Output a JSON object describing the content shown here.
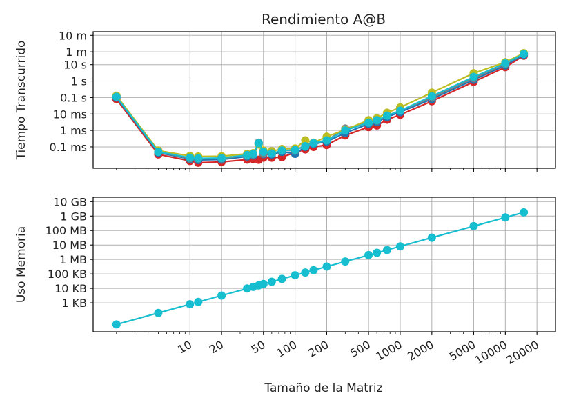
{
  "figure": {
    "title": "Rendimiento A@B",
    "xlabel": "Tamaño de la Matriz"
  },
  "chart_data": [
    {
      "type": "line",
      "title": "Rendimiento A@B",
      "xlabel": "",
      "ylabel": "Tiempo Transcurrido",
      "xscale": "log",
      "yscale": "log",
      "grid": true,
      "xlim": [
        1.2,
        30000
      ],
      "ylim": [
        5e-06,
        1000
      ],
      "x_ticks": [
        {
          "value": 10,
          "label": "10"
        },
        {
          "value": 20,
          "label": "20"
        },
        {
          "value": 50,
          "label": "50"
        },
        {
          "value": 100,
          "label": "100"
        },
        {
          "value": 200,
          "label": "200"
        },
        {
          "value": 500,
          "label": "500"
        },
        {
          "value": 1000,
          "label": "1000"
        },
        {
          "value": 2000,
          "label": "2000"
        },
        {
          "value": 5000,
          "label": "5000"
        },
        {
          "value": 10000,
          "label": "10000"
        },
        {
          "value": 20000,
          "label": "20000"
        }
      ],
      "x_tick_labels_visible": false,
      "y_ticks": [
        {
          "value": 0.0001,
          "label": "0.1 ms"
        },
        {
          "value": 0.001,
          "label": "1 ms"
        },
        {
          "value": 0.01,
          "label": "10 ms"
        },
        {
          "value": 0.1,
          "label": "0.1 s"
        },
        {
          "value": 1,
          "label": "1 s"
        },
        {
          "value": 10,
          "label": "10 s"
        },
        {
          "value": 60,
          "label": "1 m"
        },
        {
          "value": 600,
          "label": "10 m"
        }
      ],
      "series": [
        {
          "color": "#d62728",
          "x": [
            2,
            5,
            10,
            12,
            20,
            35,
            40,
            45,
            50,
            60,
            75,
            100,
            125,
            150,
            200,
            300,
            500,
            600,
            750,
            1000,
            2000,
            5000,
            10000,
            15000
          ],
          "y": [
            0.08,
            3.5e-05,
            1.4e-05,
            1.1e-05,
            1.2e-05,
            1.7e-05,
            1.8e-05,
            1.65e-05,
            2.2e-05,
            2.2e-05,
            2.4e-05,
            4.5e-05,
            7e-05,
            0.0001,
            0.00013,
            0.0005,
            0.0016,
            0.002,
            0.0045,
            0.009,
            0.06,
            0.9,
            7,
            35
          ]
        },
        {
          "color": "#1f77b4",
          "x": [
            2,
            5,
            10,
            12,
            20,
            35,
            40,
            45,
            50,
            60,
            75,
            100,
            125,
            150,
            200,
            300,
            500,
            600,
            750,
            1000,
            2000,
            5000,
            10000,
            15000
          ],
          "y": [
            0.1,
            4.5e-05,
            1.8e-05,
            1.6e-05,
            1.7e-05,
            2.6e-05,
            3e-05,
            0.00016,
            3.6e-05,
            3.5e-05,
            5e-05,
            3.8e-05,
            0.0001,
            0.00015,
            0.00021,
            0.0007,
            0.0025,
            0.0032,
            0.0065,
            0.013,
            0.08,
            1.2,
            9,
            40
          ]
        },
        {
          "color": "#7f7f7f",
          "x": [
            2,
            5,
            10,
            12,
            20,
            35,
            40,
            45,
            50,
            60,
            75,
            100,
            125,
            150,
            200,
            300,
            500,
            600,
            750,
            1000,
            2000,
            5000,
            10000,
            15000
          ],
          "y": [
            0.12,
            5e-05,
            2e-05,
            1.9e-05,
            2e-05,
            3e-05,
            3.5e-05,
            0.00018,
            4e-05,
            4e-05,
            6e-05,
            6e-05,
            0.00012,
            0.00018,
            0.00025,
            0.0013,
            0.003,
            0.004,
            0.008,
            0.016,
            0.1,
            1.5,
            11,
            45
          ]
        },
        {
          "color": "#bcbd22",
          "x": [
            2,
            5,
            10,
            12,
            20,
            35,
            40,
            45,
            50,
            60,
            75,
            100,
            125,
            150,
            200,
            300,
            500,
            600,
            750,
            1000,
            2000,
            5000,
            10000,
            15000
          ],
          "y": [
            0.13,
            6e-05,
            2.8e-05,
            2.6e-05,
            2.7e-05,
            3.8e-05,
            4.2e-05,
            0.00014,
            6e-05,
            5.5e-05,
            7.5e-05,
            8e-05,
            0.00025,
            0.00018,
            0.00042,
            0.0011,
            0.0042,
            0.0055,
            0.012,
            0.025,
            0.2,
            3,
            14,
            50
          ]
        },
        {
          "color": "#17becf",
          "x": [
            2,
            5,
            10,
            12,
            20,
            35,
            40,
            45,
            50,
            60,
            75,
            100,
            125,
            150,
            200,
            300,
            500,
            600,
            750,
            1000,
            2000,
            5000,
            10000,
            15000
          ],
          "y": [
            0.11,
            5e-05,
            2.2e-05,
            2e-05,
            2.1e-05,
            3.2e-05,
            3.7e-05,
            0.00017,
            5e-05,
            4e-05,
            6e-05,
            6.5e-05,
            0.00011,
            0.00017,
            0.00025,
            0.001,
            0.003,
            0.0042,
            0.008,
            0.016,
            0.12,
            1.8,
            12,
            45
          ]
        }
      ]
    },
    {
      "type": "line",
      "title": "",
      "xlabel": "Tamaño de la Matriz",
      "ylabel": "Uso Memoria",
      "xscale": "log",
      "yscale": "log",
      "grid": true,
      "xlim": [
        1.2,
        30000
      ],
      "ylim": [
        10,
        20000000000
      ],
      "x_ticks": [
        {
          "value": 10,
          "label": "10"
        },
        {
          "value": 20,
          "label": "20"
        },
        {
          "value": 50,
          "label": "50"
        },
        {
          "value": 100,
          "label": "100"
        },
        {
          "value": 200,
          "label": "200"
        },
        {
          "value": 500,
          "label": "500"
        },
        {
          "value": 1000,
          "label": "1000"
        },
        {
          "value": 2000,
          "label": "2000"
        },
        {
          "value": 5000,
          "label": "5000"
        },
        {
          "value": 10000,
          "label": "10000"
        },
        {
          "value": 20000,
          "label": "20000"
        }
      ],
      "x_tick_labels_visible": true,
      "y_ticks": [
        {
          "value": 1000,
          "label": "1 KB"
        },
        {
          "value": 10000,
          "label": "10 KB"
        },
        {
          "value": 100000,
          "label": "100 KB"
        },
        {
          "value": 1000000,
          "label": "1 MB"
        },
        {
          "value": 10000000,
          "label": "10 MB"
        },
        {
          "value": 100000000,
          "label": "100 MB"
        },
        {
          "value": 1000000000,
          "label": "1 GB"
        },
        {
          "value": 10000000000,
          "label": "10 GB"
        }
      ],
      "series": [
        {
          "color": "#17becf",
          "x": [
            2,
            5,
            10,
            12,
            20,
            35,
            40,
            45,
            50,
            60,
            75,
            100,
            125,
            150,
            200,
            300,
            500,
            600,
            750,
            1000,
            2000,
            5000,
            10000,
            15000
          ],
          "y": [
            32,
            200,
            800,
            1152,
            3200,
            9800,
            12800,
            16200,
            20000,
            28800,
            45000,
            80000,
            125000,
            180000,
            320000,
            720000,
            2000000,
            2880000,
            4500000,
            8000000,
            32000000,
            200000000,
            800000000,
            1800000000
          ]
        }
      ]
    }
  ]
}
